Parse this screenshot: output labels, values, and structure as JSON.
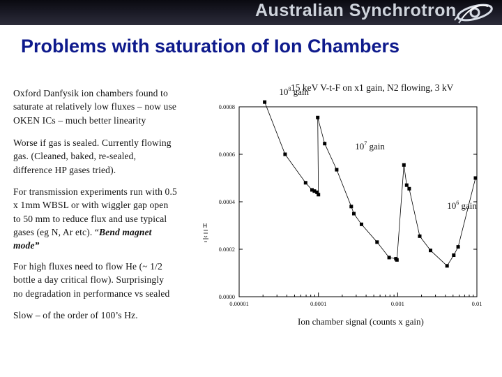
{
  "header": {
    "brand": "Australian Synchrotron",
    "logo_icon": "synchrotron-logo-icon"
  },
  "slide": {
    "title": "Problems with saturation of Ion Chambers",
    "paragraphs": [
      {
        "lines": [
          "Oxford Danfysik ion chambers found to",
          "saturate at relatively low fluxes – now use",
          "OKEN ICs – much better linearity"
        ]
      },
      {
        "lines": [
          "Worse if gas is sealed.  Currently flowing",
          "gas.  (Cleaned, baked, re-sealed,",
          "difference HP gases tried)."
        ]
      },
      {
        "lines": [
          "For transmission experiments run with 0.5",
          "x 1mm WBSL or with wiggler gap open",
          "to 50 mm to reduce flux and use typical",
          "gases (eg N, Ar etc).  “"
        ],
        "emphasis": [
          "Bend magnet",
          "mode”"
        ]
      },
      {
        "lines": [
          "For high fluxes need to flow He (~ 1/2",
          "bottle a day critical flow).  Surprisingly",
          "no degradation in performance vs sealed"
        ]
      },
      {
        "lines": [
          "Slow – of the order of 100’s Hz."
        ]
      }
    ]
  },
  "chart_data": {
    "type": "scatter",
    "title": "15 keV V-t-F on x1 gain, N2 flowing, 3 kV",
    "xlabel": "Ion chamber signal (counts x gain)",
    "ylabel": "",
    "x_scale": "log",
    "xlim": [
      1e-05,
      0.01
    ],
    "ylim": [
      0,
      0.0008
    ],
    "x_ticks": [
      "0.00001",
      "0.0001",
      "0.001",
      "0.01"
    ],
    "y_ticks": [
      "0.0000",
      "0.0002",
      "0.0004",
      "0.0006",
      "0.0008"
    ],
    "annotations": [
      {
        "base": "10",
        "exp": "8",
        "text": " gain",
        "at": [
          3.2e-05,
          0.00085
        ]
      },
      {
        "base": "10",
        "exp": "7",
        "text": " gain",
        "at": [
          0.00029,
          0.00062
        ]
      },
      {
        "base": "10",
        "exp": "6",
        "text": " gain",
        "at": [
          0.0042,
          0.00037
        ]
      }
    ],
    "series": [
      {
        "x": [
          2.1e-05,
          3.8e-05,
          6.9e-05,
          8.3e-05,
          8.9e-05,
          9.6e-05,
          0.0001,
          9.8e-05,
          0.00012,
          0.00017,
          0.00026,
          0.00028,
          0.00035,
          0.00055,
          0.00078,
          0.00095,
          0.00098,
          0.0012,
          0.0013,
          0.0014,
          0.0019,
          0.0026,
          0.0042,
          0.0051,
          0.0058,
          0.0096
        ],
        "y": [
          0.00082,
          0.0006,
          0.00048,
          0.00045,
          0.000445,
          0.00044,
          0.00043,
          0.000755,
          0.000645,
          0.000535,
          0.00038,
          0.00035,
          0.000305,
          0.00023,
          0.000165,
          0.00016,
          0.000155,
          0.000555,
          0.00047,
          0.000455,
          0.000255,
          0.000195,
          0.00013,
          0.000175,
          0.00021,
          0.0005
        ]
      }
    ]
  }
}
